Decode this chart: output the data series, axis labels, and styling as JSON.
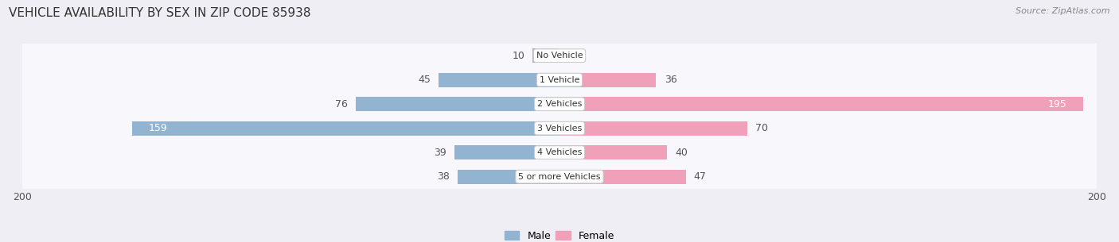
{
  "title": "VEHICLE AVAILABILITY BY SEX IN ZIP CODE 85938",
  "source": "Source: ZipAtlas.com",
  "categories": [
    "No Vehicle",
    "1 Vehicle",
    "2 Vehicles",
    "3 Vehicles",
    "4 Vehicles",
    "5 or more Vehicles"
  ],
  "male_values": [
    10,
    45,
    76,
    159,
    39,
    38
  ],
  "female_values": [
    0,
    36,
    195,
    70,
    40,
    47
  ],
  "male_color": "#92b4d0",
  "female_color": "#f0a0b8",
  "male_label": "Male",
  "female_label": "Female",
  "xlim": [
    -200,
    200
  ],
  "bar_height": 0.6,
  "background_color": "#eeeef4",
  "row_bg_color": "#f8f8fc",
  "title_fontsize": 11,
  "source_fontsize": 8,
  "value_fontsize": 9,
  "category_fontsize": 8,
  "legend_fontsize": 9,
  "tick_fontsize": 9
}
